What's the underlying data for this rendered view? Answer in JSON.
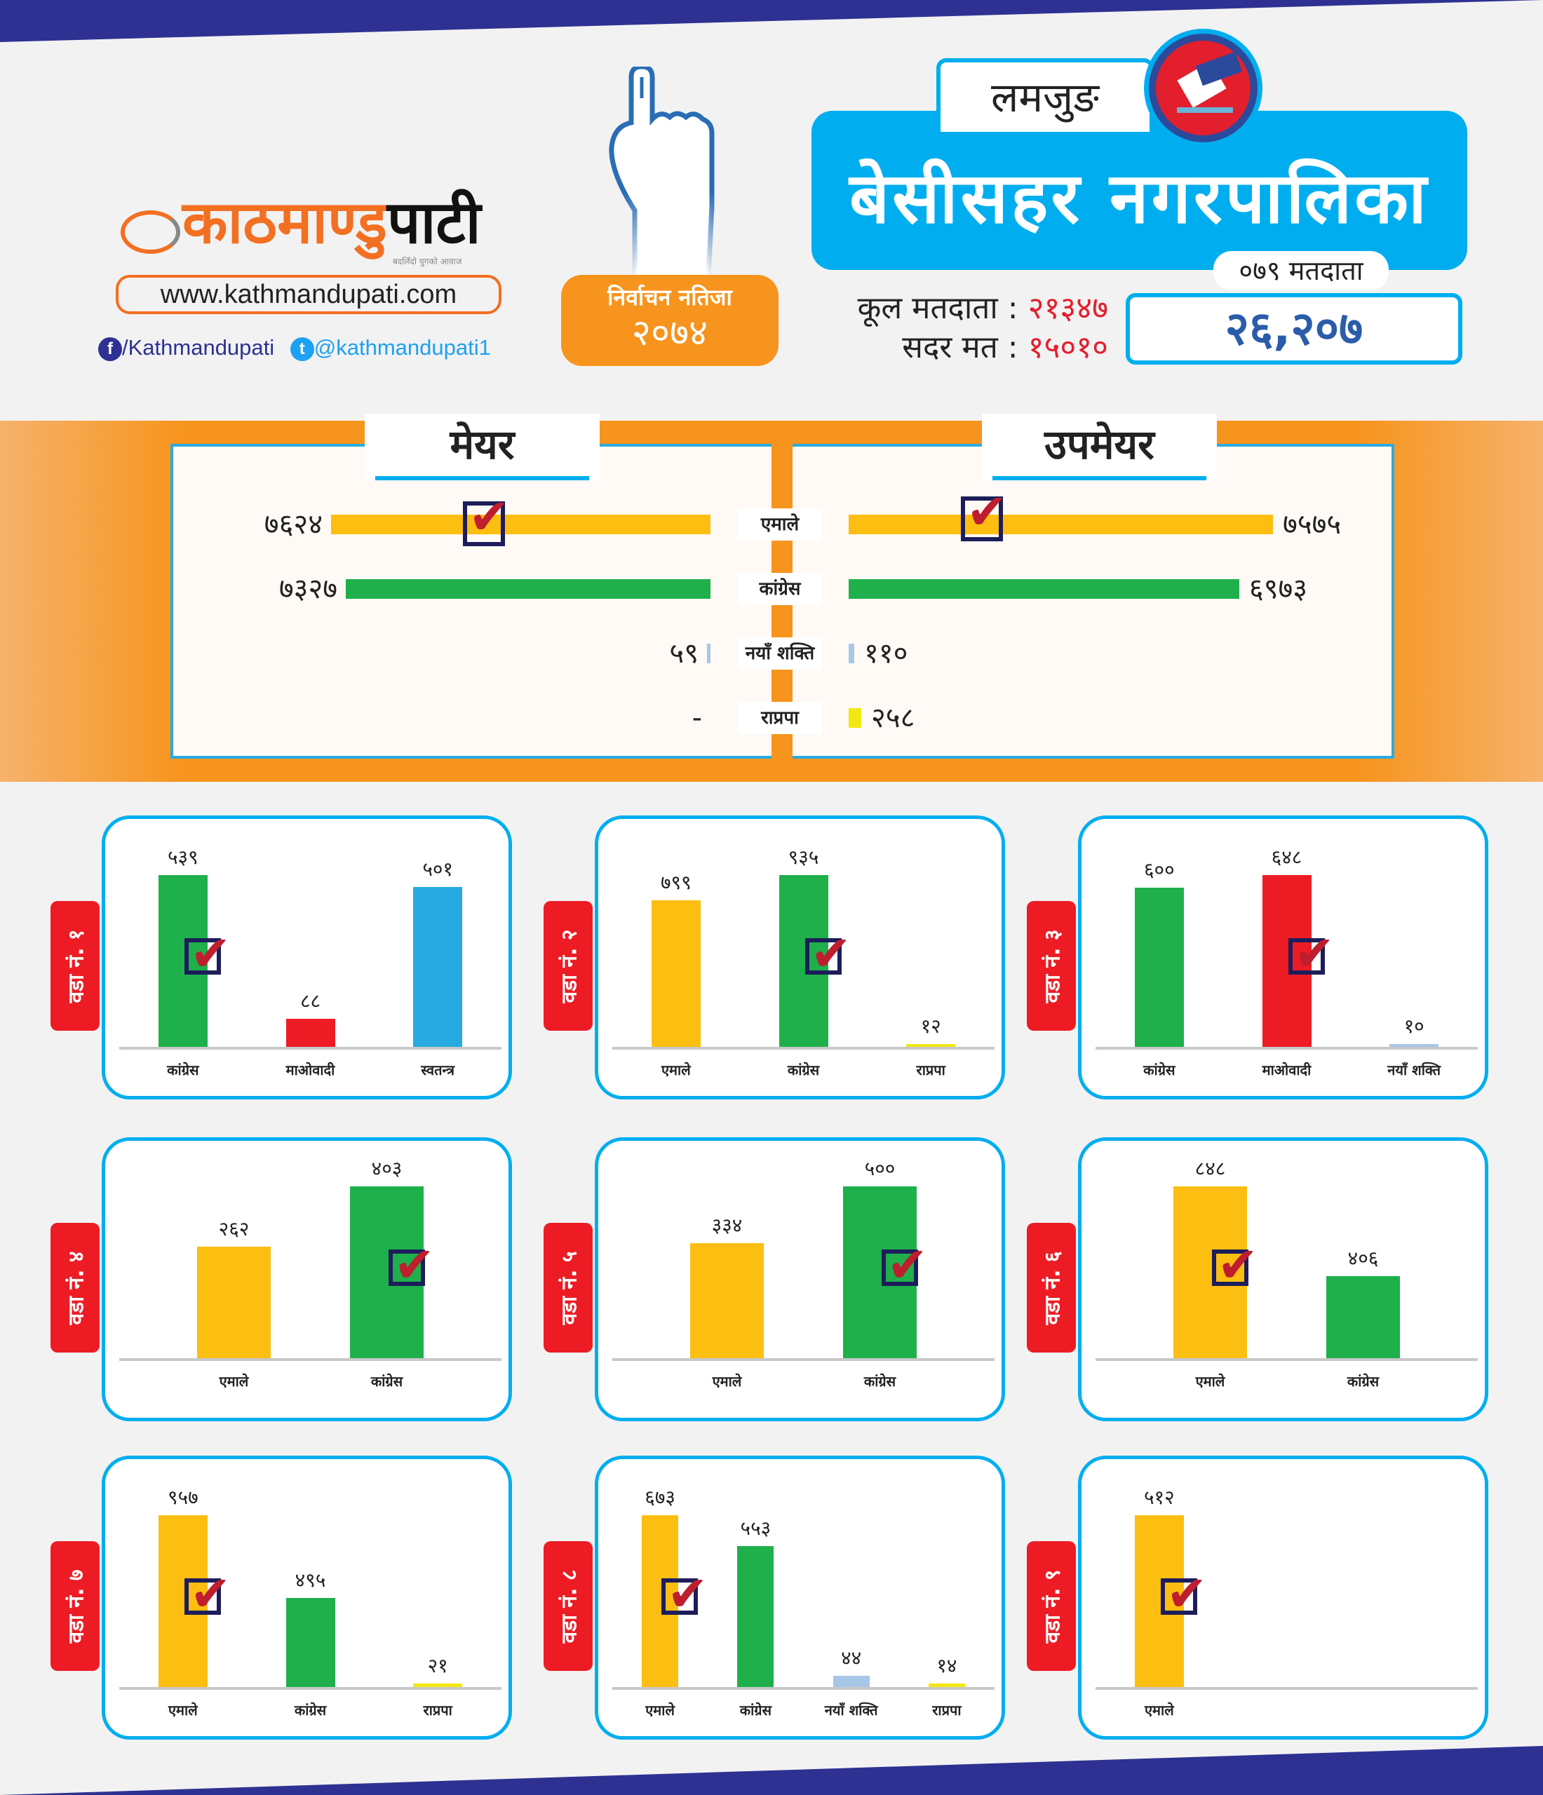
{
  "branding": {
    "logo_main": "काठमाण्डु",
    "logo_accent": "पाटी",
    "tagline": "बदलिँदो युगको आवाज",
    "url": "www.kathmandupati.com",
    "facebook": "/Kathmandupati",
    "twitter": "@kathmandupati1"
  },
  "header": {
    "result_label": "निर्वाचन नतिजा",
    "year": "२०७४",
    "district": "लमजुङ",
    "municipality": "बेसीसहर नगरपालिका",
    "total_voters_label": "कूल मतदाता :",
    "total_voters": "२१३४७",
    "valid_votes_label": "सदर मत :",
    "valid_votes": "१५०१०",
    "voters_079_label": "०७९ मतदाता",
    "voters_079": "२६,२०७"
  },
  "colors": {
    "uml": "#fdbe12",
    "congress": "#1fb04b",
    "maoist": "#ed1c24",
    "independent": "#27aae1",
    "naya_shakti": "#a7c7e7",
    "rpp": "#f2e711",
    "accent": "#00aeef"
  },
  "chart_data": [
    {
      "type": "bar",
      "orientation": "horizontal",
      "title": "मेयर",
      "categories": [
        "एमाले",
        "कांग्रेस",
        "नयाँ शक्ति",
        "राप्रपा"
      ],
      "values": [
        7624,
        7327,
        59,
        null
      ],
      "labels": [
        "७६२४",
        "७३२७",
        "५९",
        "-"
      ],
      "winner": "एमाले"
    },
    {
      "type": "bar",
      "orientation": "horizontal",
      "title": "उपमेयर",
      "categories": [
        "एमाले",
        "कांग्रेस",
        "नयाँ शक्ति",
        "राप्रपा"
      ],
      "values": [
        7575,
        6973,
        110,
        258
      ],
      "labels": [
        "७५७५",
        "६९७३",
        "११०",
        "२५८"
      ],
      "winner": "एमाले"
    },
    {
      "type": "bar",
      "title": "वडा नं. १",
      "categories": [
        "कांग्रेस",
        "माओवादी",
        "स्वतन्त्र"
      ],
      "values": [
        539,
        88,
        501
      ],
      "labels": [
        "५३९",
        "८८",
        "५०१"
      ],
      "colors": [
        "congress",
        "maoist",
        "independent"
      ],
      "winner": 0
    },
    {
      "type": "bar",
      "title": "वडा नं. २",
      "categories": [
        "एमाले",
        "कांग्रेस",
        "राप्रपा"
      ],
      "values": [
        799,
        935,
        12
      ],
      "labels": [
        "७९९",
        "९३५",
        "१२"
      ],
      "colors": [
        "uml",
        "congress",
        "rpp"
      ],
      "winner": 1
    },
    {
      "type": "bar",
      "title": "वडा नं. ३",
      "categories": [
        "कांग्रेस",
        "माओवादी",
        "नयाँ शक्ति"
      ],
      "values": [
        600,
        648,
        10
      ],
      "labels": [
        "६००",
        "६४८",
        "१०"
      ],
      "colors": [
        "congress",
        "maoist",
        "naya_shakti"
      ],
      "winner": 1
    },
    {
      "type": "bar",
      "title": "वडा नं. ४",
      "categories": [
        "एमाले",
        "कांग्रेस"
      ],
      "values": [
        262,
        403
      ],
      "labels": [
        "२६२",
        "४०३"
      ],
      "colors": [
        "uml",
        "congress"
      ],
      "winner": 1
    },
    {
      "type": "bar",
      "title": "वडा नं. ५",
      "categories": [
        "एमाले",
        "कांग्रेस"
      ],
      "values": [
        334,
        500
      ],
      "labels": [
        "३३४",
        "५००"
      ],
      "colors": [
        "uml",
        "congress"
      ],
      "winner": 1
    },
    {
      "type": "bar",
      "title": "वडा नं. ६",
      "categories": [
        "एमाले",
        "कांग्रेस"
      ],
      "values": [
        848,
        406
      ],
      "labels": [
        "८४८",
        "४०६"
      ],
      "colors": [
        "uml",
        "congress"
      ],
      "winner": 0
    },
    {
      "type": "bar",
      "title": "वडा नं. ७",
      "categories": [
        "एमाले",
        "कांग्रेस",
        "राप्रपा"
      ],
      "values": [
        957,
        495,
        21
      ],
      "labels": [
        "९५७",
        "४९५",
        "२१"
      ],
      "colors": [
        "uml",
        "congress",
        "rpp"
      ],
      "winner": 0
    },
    {
      "type": "bar",
      "title": "वडा नं. ८",
      "categories": [
        "एमाले",
        "कांग्रेस",
        "नयाँ शक्ति",
        "राप्रपा"
      ],
      "values": [
        673,
        553,
        44,
        14
      ],
      "labels": [
        "६७३",
        "५५३",
        "४४",
        "१४"
      ],
      "colors": [
        "uml",
        "congress",
        "naya_shakti",
        "rpp"
      ],
      "winner": 0
    },
    {
      "type": "bar",
      "title": "वडा नं. ९",
      "categories": [
        "एमाले"
      ],
      "values": [
        512
      ],
      "labels": [
        "५१२"
      ],
      "colors": [
        "uml"
      ],
      "winner": 0
    }
  ]
}
